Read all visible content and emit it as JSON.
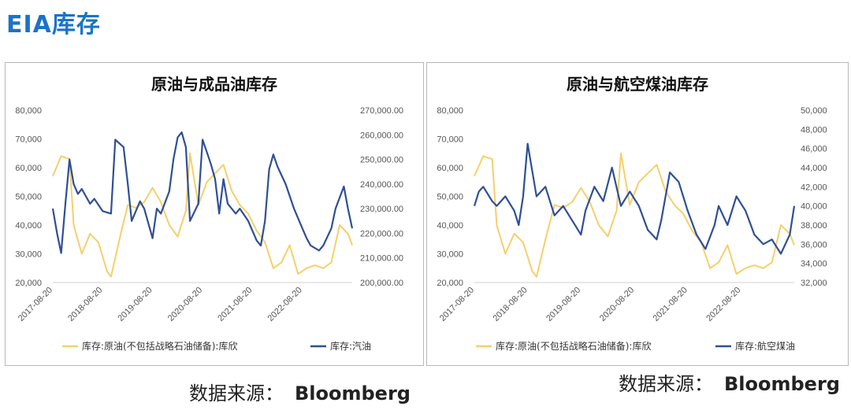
{
  "page": {
    "title": "EIA库存"
  },
  "colors": {
    "crude": "#f5cf6b",
    "product": "#2f4f96",
    "title": "#1a73c8"
  },
  "sources": [
    {
      "label": "数据来源：",
      "name": "Bloomberg"
    },
    {
      "label": "数据来源：",
      "name": "Bloomberg"
    }
  ],
  "chart_data": [
    {
      "type": "line",
      "title": "原油与成品油库存",
      "x_tick_labels": [
        "2017-08-20",
        "2018-08-20",
        "2019-08-20",
        "2020-08-20",
        "2021-08-20",
        "2022-08-20"
      ],
      "x_range": [
        "2017-08-20",
        "2023-08-20"
      ],
      "y_left": {
        "ticks": [
          "20,000",
          "30,000",
          "40,000",
          "50,000",
          "60,000",
          "70,000",
          "80,000"
        ],
        "range": [
          20000,
          80000
        ]
      },
      "y_right": {
        "ticks": [
          "200,000.00",
          "210,000.00",
          "220,000.00",
          "230,000.00",
          "240,000.00",
          "250,000.00",
          "260,000.00",
          "270,000.00"
        ],
        "range": [
          200000,
          270000
        ]
      },
      "grid": false,
      "legend_position": "bottom",
      "series": [
        {
          "name": "库存:原油(不包括战略石油储备):库欣",
          "axis": "left",
          "color": "#f5cf6b",
          "x": [
            "2017-08-20",
            "2017-10-20",
            "2017-12-20",
            "2018-01-20",
            "2018-03-20",
            "2018-05-20",
            "2018-07-20",
            "2018-09-20",
            "2018-10-20",
            "2018-12-20",
            "2019-02-20",
            "2019-04-20",
            "2019-06-20",
            "2019-08-20",
            "2019-10-20",
            "2019-12-20",
            "2020-02-20",
            "2020-04-20",
            "2020-05-20",
            "2020-07-20",
            "2020-09-20",
            "2020-11-20",
            "2021-01-20",
            "2021-03-20",
            "2021-05-20",
            "2021-07-20",
            "2021-09-20",
            "2021-11-20",
            "2022-01-20",
            "2022-03-20",
            "2022-05-20",
            "2022-07-20",
            "2022-09-20",
            "2022-11-20",
            "2023-01-20",
            "2023-03-20",
            "2023-05-20",
            "2023-07-20",
            "2023-08-20"
          ],
          "y": [
            57000,
            64000,
            63000,
            40000,
            30000,
            37000,
            34000,
            24000,
            22000,
            35000,
            47000,
            46000,
            48000,
            53000,
            48000,
            40000,
            36000,
            45000,
            65000,
            47000,
            55000,
            58000,
            61000,
            52000,
            47000,
            44000,
            38000,
            34000,
            25000,
            27000,
            33000,
            23000,
            25000,
            26000,
            25000,
            27000,
            40000,
            37000,
            33000
          ]
        },
        {
          "name": "库存:汽油",
          "axis": "right",
          "color": "#2f4f96",
          "x": [
            "2017-08-20",
            "2017-09-20",
            "2017-10-20",
            "2017-11-20",
            "2017-12-20",
            "2018-01-20",
            "2018-02-20",
            "2018-03-20",
            "2018-05-20",
            "2018-06-20",
            "2018-08-20",
            "2018-10-20",
            "2018-11-20",
            "2019-01-20",
            "2019-02-20",
            "2019-03-20",
            "2019-05-20",
            "2019-06-20",
            "2019-08-20",
            "2019-09-20",
            "2019-10-20",
            "2019-12-20",
            "2020-01-20",
            "2020-02-20",
            "2020-03-20",
            "2020-04-20",
            "2020-05-20",
            "2020-07-20",
            "2020-08-20",
            "2020-09-20",
            "2020-10-20",
            "2020-11-20",
            "2020-12-20",
            "2021-01-20",
            "2021-02-20",
            "2021-04-20",
            "2021-05-20",
            "2021-07-20",
            "2021-09-20",
            "2021-10-20",
            "2021-11-20",
            "2021-12-20",
            "2022-01-20",
            "2022-02-20",
            "2022-04-20",
            "2022-06-20",
            "2022-08-20",
            "2022-09-20",
            "2022-10-20",
            "2022-12-20",
            "2023-01-20",
            "2023-03-20",
            "2023-04-20",
            "2023-06-20",
            "2023-07-20",
            "2023-08-20"
          ],
          "y": [
            230000,
            220000,
            212000,
            232000,
            250000,
            240000,
            236000,
            238000,
            232000,
            234000,
            229000,
            228000,
            258000,
            255000,
            240000,
            225000,
            233000,
            230000,
            218000,
            230000,
            228000,
            237000,
            250000,
            259000,
            261000,
            255000,
            225000,
            232000,
            258000,
            253000,
            248000,
            242000,
            228000,
            242000,
            232000,
            228000,
            230000,
            225000,
            217000,
            215000,
            225000,
            246000,
            252000,
            247000,
            240000,
            230000,
            222000,
            218000,
            215000,
            213000,
            215000,
            222000,
            230000,
            239000,
            230000,
            222000
          ]
        }
      ]
    },
    {
      "type": "line",
      "title": "原油与航空煤油库存",
      "x_tick_labels": [
        "2017-08-20",
        "2018-08-20",
        "2019-08-20",
        "2020-08-20",
        "2021-08-20",
        "2022-08-20"
      ],
      "x_range": [
        "2017-08-20",
        "2023-08-20"
      ],
      "y_left": {
        "ticks": [
          "20,000",
          "30,000",
          "40,000",
          "50,000",
          "60,000",
          "70,000",
          "80,000"
        ],
        "range": [
          20000,
          80000
        ]
      },
      "y_right": {
        "ticks": [
          "32,000",
          "34,000",
          "36,000",
          "38,000",
          "40,000",
          "42,000",
          "44,000",
          "46,000",
          "48,000",
          "50,000"
        ],
        "range": [
          32000,
          50000
        ]
      },
      "grid": false,
      "legend_position": "bottom",
      "series": [
        {
          "name": "库存:原油(不包括战略石油储备):库欣",
          "axis": "left",
          "color": "#f5cf6b",
          "x": [
            "2017-08-20",
            "2017-10-20",
            "2017-12-20",
            "2018-01-20",
            "2018-03-20",
            "2018-05-20",
            "2018-07-20",
            "2018-09-20",
            "2018-10-20",
            "2018-12-20",
            "2019-02-20",
            "2019-04-20",
            "2019-06-20",
            "2019-08-20",
            "2019-10-20",
            "2019-12-20",
            "2020-02-20",
            "2020-04-20",
            "2020-05-20",
            "2020-07-20",
            "2020-09-20",
            "2020-11-20",
            "2021-01-20",
            "2021-03-20",
            "2021-05-20",
            "2021-07-20",
            "2021-09-20",
            "2021-11-20",
            "2022-01-20",
            "2022-03-20",
            "2022-05-20",
            "2022-07-20",
            "2022-09-20",
            "2022-11-20",
            "2023-01-20",
            "2023-03-20",
            "2023-05-20",
            "2023-07-20",
            "2023-08-20"
          ],
          "y": [
            57000,
            64000,
            63000,
            40000,
            30000,
            37000,
            34000,
            24000,
            22000,
            35000,
            47000,
            46000,
            48000,
            53000,
            48000,
            40000,
            36000,
            45000,
            65000,
            47000,
            55000,
            58000,
            61000,
            52000,
            47000,
            44000,
            38000,
            34000,
            25000,
            27000,
            33000,
            23000,
            25000,
            26000,
            25000,
            27000,
            40000,
            37000,
            33000
          ]
        },
        {
          "name": "库存:航空煤油",
          "axis": "right",
          "color": "#2f4f96",
          "x": [
            "2017-08-20",
            "2017-09-20",
            "2017-10-20",
            "2017-12-20",
            "2018-01-20",
            "2018-03-20",
            "2018-05-20",
            "2018-06-20",
            "2018-07-20",
            "2018-08-20",
            "2018-10-20",
            "2018-12-20",
            "2019-02-20",
            "2019-04-20",
            "2019-06-20",
            "2019-08-20",
            "2019-09-20",
            "2019-11-20",
            "2020-01-20",
            "2020-03-20",
            "2020-05-20",
            "2020-07-20",
            "2020-09-20",
            "2020-11-20",
            "2021-01-20",
            "2021-02-20",
            "2021-04-20",
            "2021-06-20",
            "2021-08-20",
            "2021-10-20",
            "2021-12-20",
            "2022-02-20",
            "2022-03-20",
            "2022-05-20",
            "2022-07-20",
            "2022-09-20",
            "2022-11-20",
            "2023-01-20",
            "2023-03-20",
            "2023-05-20",
            "2023-07-20",
            "2023-08-20"
          ],
          "y": [
            40000,
            41500,
            42000,
            40500,
            40000,
            41000,
            39500,
            38000,
            41000,
            46500,
            41000,
            42000,
            39000,
            40000,
            38500,
            37000,
            39500,
            42000,
            40500,
            44000,
            40000,
            41500,
            40000,
            37500,
            36500,
            38500,
            43500,
            42500,
            39500,
            37000,
            35500,
            38000,
            40000,
            38000,
            41000,
            39500,
            37000,
            36000,
            36500,
            35000,
            37000,
            40000
          ]
        }
      ]
    }
  ]
}
